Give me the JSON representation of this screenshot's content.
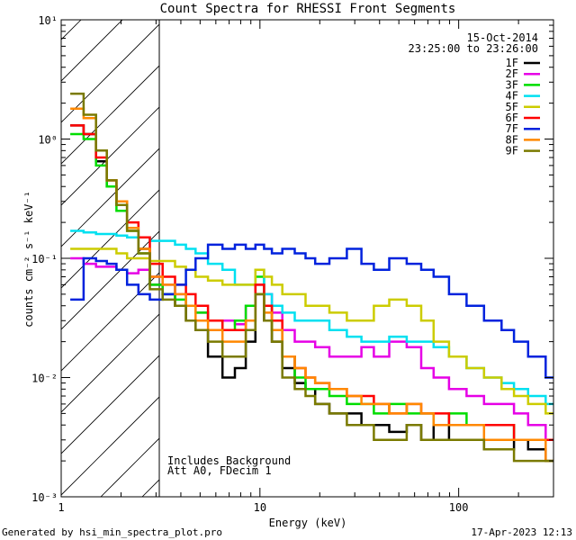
{
  "chart_data": {
    "type": "line",
    "title": "Count Spectra for RHESSI Front Segments",
    "xlabel": "Energy (keV)",
    "ylabel": "counts cm⁻² s⁻¹ keV⁻¹",
    "x_scale": "log",
    "y_scale": "log",
    "xlim": [
      1,
      300
    ],
    "ylim": [
      0.001,
      10
    ],
    "x_ticks": [
      {
        "value": 1,
        "label": "1"
      },
      {
        "value": 10,
        "label": "10"
      },
      {
        "value": 100,
        "label": "100"
      }
    ],
    "y_ticks": [
      {
        "value": 0.001,
        "label": "10⁻³"
      },
      {
        "value": 0.01,
        "label": "10⁻²"
      },
      {
        "value": 0.1,
        "label": "10⁻¹"
      },
      {
        "value": 1,
        "label": "10⁰"
      },
      {
        "value": 10,
        "label": "10¹"
      }
    ],
    "shaded_region": {
      "x_range": [
        1,
        3
      ],
      "style": "diagonal hatch"
    },
    "date_label": "15-Oct-2014",
    "time_range_label": "23:25:00 to 23:26:00",
    "annotations": [
      "Includes Background",
      "Att A0, FDecim 1"
    ],
    "footer_left": "Generated by hsi_min_spectra_plot.pro",
    "footer_right": "17-Apr-2023 12:13",
    "x": [
      1.2,
      1.4,
      1.6,
      1.8,
      2.0,
      2.3,
      2.6,
      3.0,
      3.5,
      4.0,
      4.5,
      5.0,
      6.0,
      7.0,
      8.0,
      9.0,
      10.0,
      11.0,
      12.0,
      14.0,
      16.0,
      18.0,
      20.0,
      25.0,
      30.0,
      35.0,
      40.0,
      50.0,
      60.0,
      70.0,
      80.0,
      100.0,
      120.0,
      150.0,
      180.0,
      200.0,
      250.0,
      300.0
    ],
    "series": [
      {
        "name": "1F",
        "color": "#000000",
        "values": [
          1.3,
          1.1,
          0.65,
          0.4,
          0.28,
          0.18,
          0.12,
          0.06,
          0.05,
          0.04,
          0.03,
          0.025,
          0.015,
          0.01,
          0.012,
          0.02,
          0.05,
          0.03,
          0.02,
          0.012,
          0.009,
          0.008,
          0.006,
          0.005,
          0.005,
          0.004,
          0.004,
          0.0035,
          0.004,
          0.003,
          0.004,
          0.003,
          0.003,
          0.0025,
          0.0025,
          0.003,
          0.0025,
          0.002
        ]
      },
      {
        "name": "2F",
        "color": "#e600e6",
        "values": [
          0.1,
          0.09,
          0.085,
          0.085,
          0.08,
          0.075,
          0.08,
          0.07,
          0.06,
          0.05,
          0.04,
          0.035,
          0.03,
          0.03,
          0.028,
          0.04,
          0.06,
          0.05,
          0.035,
          0.025,
          0.02,
          0.02,
          0.018,
          0.015,
          0.015,
          0.018,
          0.015,
          0.02,
          0.018,
          0.012,
          0.01,
          0.008,
          0.007,
          0.006,
          0.006,
          0.005,
          0.004,
          0.003
        ]
      },
      {
        "name": "3F",
        "color": "#00dd00",
        "values": [
          1.1,
          1.0,
          0.6,
          0.4,
          0.25,
          0.17,
          0.11,
          0.06,
          0.05,
          0.045,
          0.04,
          0.035,
          0.03,
          0.025,
          0.03,
          0.04,
          0.07,
          0.04,
          0.025,
          0.015,
          0.01,
          0.008,
          0.008,
          0.007,
          0.006,
          0.006,
          0.005,
          0.006,
          0.005,
          0.005,
          0.004,
          0.005,
          0.004,
          0.004,
          0.004,
          0.003,
          0.003,
          0.003
        ]
      },
      {
        "name": "4F",
        "color": "#00e0f0",
        "values": [
          0.17,
          0.165,
          0.16,
          0.16,
          0.155,
          0.15,
          0.15,
          0.14,
          0.14,
          0.13,
          0.12,
          0.11,
          0.09,
          0.08,
          0.06,
          0.06,
          0.08,
          0.05,
          0.04,
          0.035,
          0.03,
          0.03,
          0.03,
          0.025,
          0.022,
          0.02,
          0.02,
          0.022,
          0.02,
          0.02,
          0.018,
          0.015,
          0.012,
          0.01,
          0.009,
          0.008,
          0.007,
          0.006
        ]
      },
      {
        "name": "5F",
        "color": "#cccc00",
        "values": [
          0.12,
          0.12,
          0.12,
          0.12,
          0.11,
          0.1,
          0.1,
          0.095,
          0.095,
          0.085,
          0.08,
          0.07,
          0.065,
          0.06,
          0.06,
          0.06,
          0.08,
          0.07,
          0.06,
          0.05,
          0.05,
          0.04,
          0.04,
          0.035,
          0.03,
          0.03,
          0.04,
          0.045,
          0.04,
          0.03,
          0.02,
          0.015,
          0.012,
          0.01,
          0.008,
          0.007,
          0.006,
          0.005
        ]
      },
      {
        "name": "6F",
        "color": "#ff0000",
        "values": [
          1.3,
          1.1,
          0.7,
          0.45,
          0.3,
          0.2,
          0.15,
          0.09,
          0.07,
          0.06,
          0.05,
          0.04,
          0.03,
          0.025,
          0.025,
          0.03,
          0.06,
          0.04,
          0.03,
          0.015,
          0.012,
          0.01,
          0.009,
          0.008,
          0.007,
          0.007,
          0.006,
          0.005,
          0.006,
          0.005,
          0.005,
          0.004,
          0.004,
          0.004,
          0.004,
          0.003,
          0.003,
          0.003
        ]
      },
      {
        "name": "7F",
        "color": "#0022dd",
        "values": [
          0.045,
          0.1,
          0.095,
          0.09,
          0.08,
          0.06,
          0.05,
          0.045,
          0.05,
          0.06,
          0.08,
          0.1,
          0.13,
          0.12,
          0.13,
          0.12,
          0.13,
          0.12,
          0.11,
          0.12,
          0.11,
          0.1,
          0.09,
          0.1,
          0.12,
          0.09,
          0.08,
          0.1,
          0.09,
          0.08,
          0.07,
          0.05,
          0.04,
          0.03,
          0.025,
          0.02,
          0.015,
          0.01
        ]
      },
      {
        "name": "8F",
        "color": "#ff8800",
        "values": [
          1.8,
          1.5,
          0.8,
          0.45,
          0.3,
          0.18,
          0.12,
          0.07,
          0.06,
          0.05,
          0.04,
          0.03,
          0.025,
          0.02,
          0.02,
          0.03,
          0.05,
          0.035,
          0.025,
          0.015,
          0.012,
          0.01,
          0.009,
          0.008,
          0.007,
          0.006,
          0.006,
          0.005,
          0.006,
          0.005,
          0.004,
          0.004,
          0.004,
          0.003,
          0.003,
          0.003,
          0.003,
          0.002
        ]
      },
      {
        "name": "9F",
        "color": "#7a7a00",
        "values": [
          2.4,
          1.6,
          0.8,
          0.45,
          0.28,
          0.17,
          0.11,
          0.055,
          0.045,
          0.04,
          0.03,
          0.025,
          0.02,
          0.015,
          0.015,
          0.025,
          0.05,
          0.03,
          0.02,
          0.01,
          0.008,
          0.007,
          0.006,
          0.005,
          0.004,
          0.004,
          0.003,
          0.003,
          0.004,
          0.003,
          0.003,
          0.003,
          0.003,
          0.0025,
          0.0025,
          0.002,
          0.002,
          0.002
        ]
      }
    ]
  }
}
